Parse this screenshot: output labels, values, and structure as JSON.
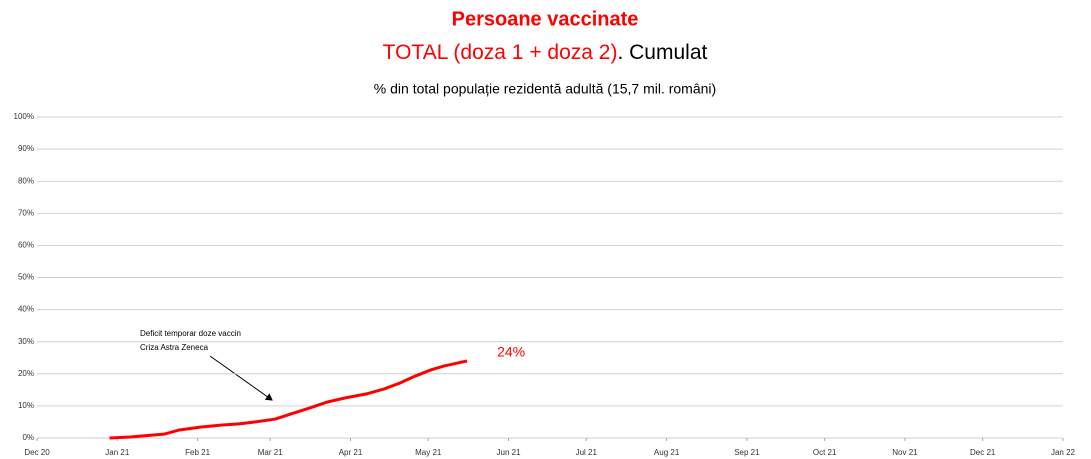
{
  "chart_data": {
    "type": "line",
    "title": "Persoane vaccinate",
    "title_color": "#ff0000",
    "subtitle_parts": [
      {
        "text": "TOTAL (doza 1 + doza 2)",
        "color": "#ff0000"
      },
      {
        "text": ". Cumulat",
        "color": "#000000"
      }
    ],
    "note": "% din total populație rezidentă adultă (15,7 mil. români)",
    "annotation": [
      "Deficit temporar doze vaccin",
      "Criza Astra Zeneca"
    ],
    "xlim": [
      0,
      396
    ],
    "xticks": [
      {
        "value": 0,
        "label": "Dec 20"
      },
      {
        "value": 31,
        "label": "Jan 21"
      },
      {
        "value": 62,
        "label": "Feb 21"
      },
      {
        "value": 90,
        "label": "Mar 21"
      },
      {
        "value": 121,
        "label": "Apr 21"
      },
      {
        "value": 151,
        "label": "May 21"
      },
      {
        "value": 182,
        "label": "Jun 21"
      },
      {
        "value": 212,
        "label": "Jul 21"
      },
      {
        "value": 243,
        "label": "Aug 21"
      },
      {
        "value": 274,
        "label": "Sep 21"
      },
      {
        "value": 304,
        "label": "Oct 21"
      },
      {
        "value": 335,
        "label": "Nov 21"
      },
      {
        "value": 365,
        "label": "Dec 21"
      },
      {
        "value": 396,
        "label": "Jan 22"
      }
    ],
    "ylim": [
      0,
      100
    ],
    "yticks": [
      {
        "value": 0,
        "label": "0%"
      },
      {
        "value": 10,
        "label": "10%"
      },
      {
        "value": 20,
        "label": "20%"
      },
      {
        "value": 30,
        "label": "30%"
      },
      {
        "value": 40,
        "label": "40%"
      },
      {
        "value": 50,
        "label": "50%"
      },
      {
        "value": 60,
        "label": "60%"
      },
      {
        "value": 70,
        "label": "70%"
      },
      {
        "value": 80,
        "label": "80%"
      },
      {
        "value": 90,
        "label": "90%"
      },
      {
        "value": 100,
        "label": "100%"
      }
    ],
    "grid": true,
    "x": [
      28,
      36,
      49,
      55,
      63,
      71,
      78,
      84,
      92,
      98,
      105,
      112,
      119,
      127,
      134,
      140,
      146,
      152,
      157,
      166
    ],
    "series": [
      {
        "color": "#ff0000",
        "values": [
          0,
          0.3,
          1.2,
          2.5,
          3.4,
          4,
          4.4,
          5,
          5.9,
          7.5,
          9.3,
          11.2,
          12.5,
          13.7,
          15.3,
          17.1,
          19.3,
          21.2,
          22.4,
          24
        ],
        "value_labels": [
          null,
          null,
          null,
          null,
          null,
          null,
          null,
          null,
          null,
          null,
          null,
          null,
          null,
          null,
          null,
          null,
          null,
          null,
          null,
          "24%"
        ]
      }
    ]
  }
}
